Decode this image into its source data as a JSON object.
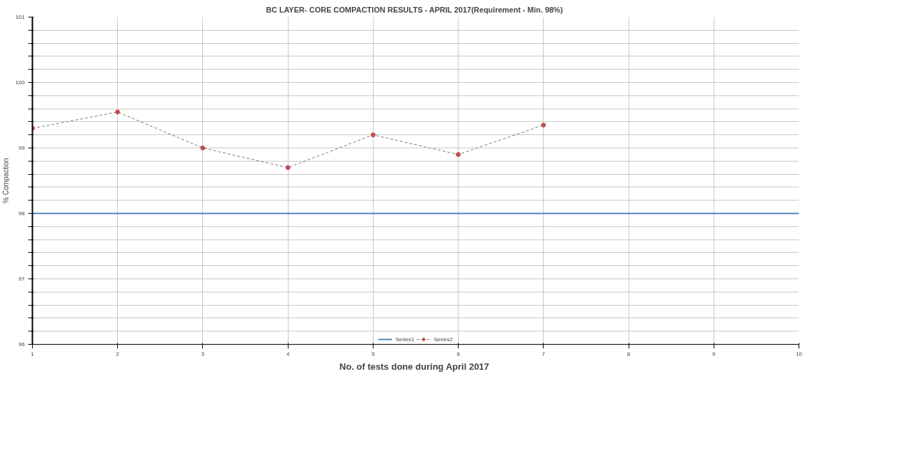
{
  "chart_data": {
    "type": "line",
    "title": "BC LAYER- CORE COMPACTION RESULTS - APRIL  2017(Requirement - Min. 98%)",
    "xlabel": "No. of tests done during April  2017",
    "ylabel": "% Compaction",
    "x": [
      1,
      2,
      3,
      4,
      5,
      6,
      7,
      8,
      9,
      10
    ],
    "series": [
      {
        "name": "Series1",
        "color": "#4f81bd",
        "line_style": "solid",
        "marker": "none",
        "values": [
          98,
          98,
          98,
          98,
          98,
          98,
          98,
          98,
          98,
          98
        ]
      },
      {
        "name": "Series2",
        "color": "#c0504d",
        "line_style": "dashed",
        "marker": "circle",
        "values": [
          99.3,
          99.55,
          99.0,
          98.7,
          99.2,
          98.9,
          99.35,
          null,
          null,
          null
        ]
      }
    ],
    "xlim": [
      1,
      10
    ],
    "xticks": [
      1,
      2,
      3,
      4,
      5,
      6,
      7,
      8,
      9,
      10
    ],
    "ylim": [
      96,
      101
    ],
    "yticks": [
      96,
      {
        "value": 96.2,
        "label": null
      },
      {
        "value": 96.4,
        "label": null
      },
      {
        "value": 96.6,
        "label": null
      },
      {
        "value": 96.8,
        "label": null
      },
      97,
      {
        "value": 97.2,
        "label": null
      },
      {
        "value": 97.4,
        "label": null
      },
      {
        "value": 97.6,
        "label": null
      },
      {
        "value": 97.8,
        "label": null
      },
      98,
      {
        "value": 98.2,
        "label": null
      },
      {
        "value": 98.4,
        "label": null
      },
      {
        "value": 98.6,
        "label": null
      },
      {
        "value": 98.8,
        "label": null
      },
      99,
      {
        "value": 99.2,
        "label": null
      },
      {
        "value": 99.4,
        "label": null
      },
      {
        "value": 99.6,
        "label": null
      },
      {
        "value": 99.8,
        "label": null
      },
      100,
      {
        "value": 100.2,
        "label": null
      },
      {
        "value": 100.4,
        "label": null
      },
      {
        "value": 100.6,
        "label": null
      },
      {
        "value": 100.8,
        "label": null
      },
      101
    ],
    "grid": true,
    "legend": "bottom"
  }
}
